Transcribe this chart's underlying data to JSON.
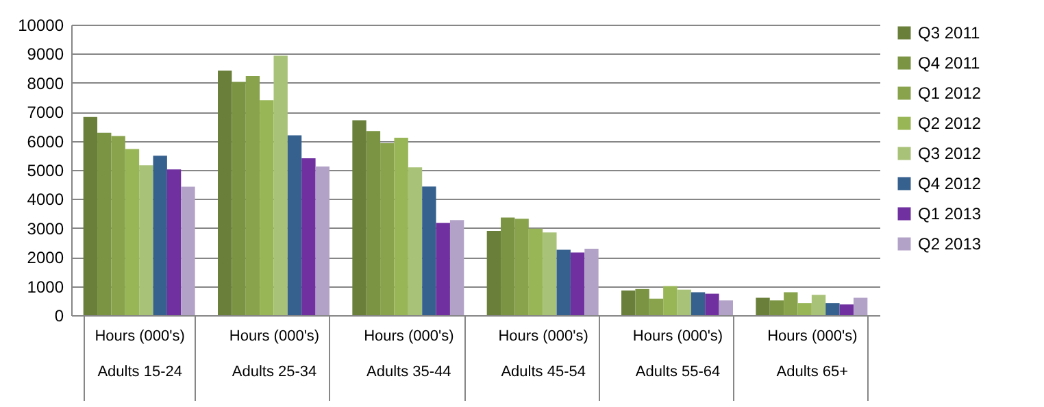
{
  "chart_data": {
    "type": "bar",
    "categories": [
      "Hours (000's)\nAdults 15-24",
      "Hours (000's)\nAdults 25-34",
      "Hours (000's)\nAdults 35-44",
      "Hours (000's)\nAdults 45-54",
      "Hours (000's)\nAdults 55-64",
      "Hours (000's)\nAdults 65+"
    ],
    "series": [
      {
        "name": "Q3 2011",
        "color": "#6a803a",
        "values": [
          6820,
          8420,
          6710,
          2900,
          850,
          600
        ]
      },
      {
        "name": "Q4 2011",
        "color": "#7a9443",
        "values": [
          6280,
          8030,
          6340,
          3360,
          900,
          510
        ]
      },
      {
        "name": "Q1 2012",
        "color": "#88a34c",
        "values": [
          6170,
          8230,
          5920,
          3320,
          570,
          790
        ]
      },
      {
        "name": "Q2 2012",
        "color": "#98b656",
        "values": [
          5720,
          7400,
          6110,
          2980,
          1000,
          420
        ]
      },
      {
        "name": "Q3 2012",
        "color": "#a8c277",
        "values": [
          5160,
          8930,
          5090,
          2850,
          880,
          700
        ]
      },
      {
        "name": "Q4 2012",
        "color": "#36618f",
        "values": [
          5490,
          6190,
          4430,
          2250,
          790,
          420
        ]
      },
      {
        "name": "Q1 2013",
        "color": "#7030a0",
        "values": [
          5020,
          5400,
          3180,
          2160,
          740,
          370
        ]
      },
      {
        "name": "Q2 2013",
        "color": "#b3a2c7",
        "values": [
          4420,
          5120,
          3270,
          2290,
          510,
          600
        ]
      }
    ],
    "ylim": [
      0,
      10000
    ],
    "yticks": [
      0,
      1000,
      2000,
      3000,
      4000,
      5000,
      6000,
      7000,
      8000,
      9000,
      10000
    ],
    "grid": "y",
    "legend": "right"
  }
}
